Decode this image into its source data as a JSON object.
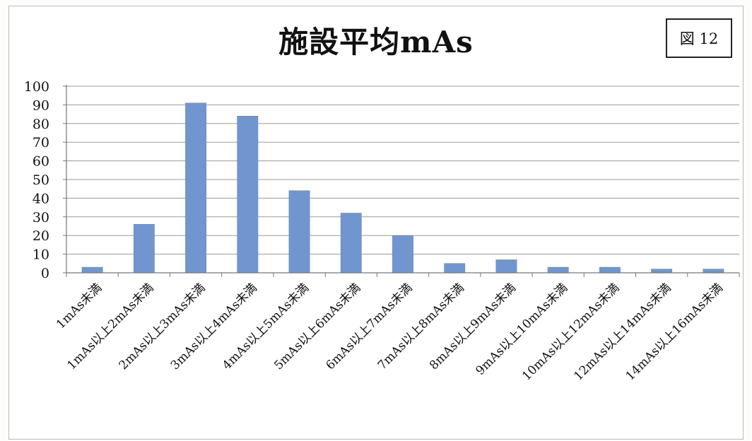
{
  "figure_badge": "図 12",
  "chart_data": {
    "type": "bar",
    "title": "施設平均mAs",
    "xlabel": "",
    "ylabel": "",
    "ylim": [
      0,
      100
    ],
    "yticks": [
      0,
      10,
      20,
      30,
      40,
      50,
      60,
      70,
      80,
      90,
      100
    ],
    "grid": true,
    "legend": "none",
    "bar_color": "#7196cf",
    "categories": [
      "1mAs未満",
      "1mAs以上2mAs未満",
      "2mAs以上3mAs未満",
      "3mAs以上4mAs未満",
      "4mAs以上5mAs未満",
      "5mAs以上6mAs未満",
      "6mAs以上7mAs未満",
      "7mAs以上8mAs未満",
      "8mAs以上9mAs未満",
      "9mAs以上10mAs未満",
      "10mAs以上12mAs未満",
      "12mAs以上14mAs未満",
      "14mAs以上16mAs未満"
    ],
    "values": [
      3,
      26,
      91,
      84,
      44,
      32,
      20,
      5,
      7,
      3,
      3,
      2,
      2
    ]
  }
}
